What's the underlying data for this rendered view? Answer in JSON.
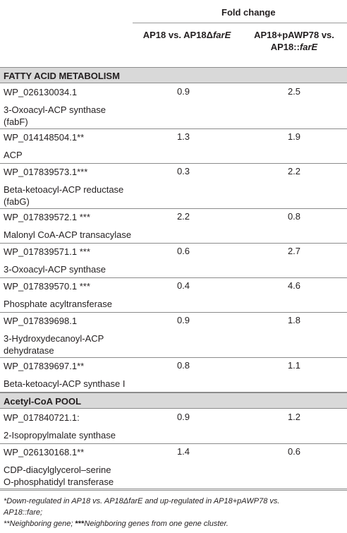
{
  "table": {
    "group_header": "Fold change",
    "columns": [
      {
        "label_a": "AP18 vs. AP18Δ",
        "label_b": "farE"
      },
      {
        "line1": "AP18+pAWP78 vs.",
        "line2_a": "AP18::",
        "line2_b": "farE"
      }
    ],
    "sections": [
      {
        "title": "FATTY ACID METABOLISM",
        "rows": [
          {
            "id": "WP_026130034.1",
            "desc": [
              "3-Oxoacyl-ACP synthase",
              "(fabF)"
            ],
            "v1": "0.9",
            "v2": "2.5"
          },
          {
            "id": "WP_014148504.1**",
            "desc": [
              "ACP"
            ],
            "v1": "1.3",
            "v2": "1.9"
          },
          {
            "id": "WP_017839573.1***",
            "desc": [
              "Beta-ketoacyl-ACP reductase",
              "(fabG)"
            ],
            "v1": "0.3",
            "v2": "2.2"
          },
          {
            "id": "WP_017839572.1 ***",
            "desc": [
              "Malonyl CoA-ACP transacylase"
            ],
            "v1": "2.2",
            "v2": "0.8"
          },
          {
            "id": "WP_017839571.1 ***",
            "desc": [
              "3-Oxoacyl-ACP synthase"
            ],
            "v1": "0.6",
            "v2": "2.7"
          },
          {
            "id": "WP_017839570.1 ***",
            "desc": [
              "Phosphate acyltransferase"
            ],
            "v1": "0.4",
            "v2": "4.6"
          },
          {
            "id": "WP_017839698.1",
            "desc": [
              "3-Hydroxydecanoyl-ACP",
              "dehydratase"
            ],
            "v1": "0.9",
            "v2": "1.8"
          },
          {
            "id": "WP_017839697.1**",
            "desc": [
              "Beta-ketoacyl-ACP synthase I"
            ],
            "v1": "0.8",
            "v2": "1.1"
          }
        ]
      },
      {
        "title": "Acetyl-CoA POOL",
        "rows": [
          {
            "id": "WP_017840721.1:",
            "desc": [
              "2-Isopropylmalate synthase"
            ],
            "v1": "0.9",
            "v2": "1.2"
          },
          {
            "id": "WP_026130168.1**",
            "desc": [
              "CDP-diacylglycerol–serine",
              "O-phosphatidyl transferase"
            ],
            "v1": "1.4",
            "v2": "0.6"
          }
        ]
      }
    ]
  },
  "footnotes": {
    "line1": "*Down-regulated in AP18 vs. AP18ΔfarE and up-regulated in AP18+pAWP78 vs.",
    "line2": "AP18::fare;",
    "line3_a": "**Neighboring gene; ",
    "line3_b": "***",
    "line3_c": "Neighboring genes from one gene cluster."
  }
}
